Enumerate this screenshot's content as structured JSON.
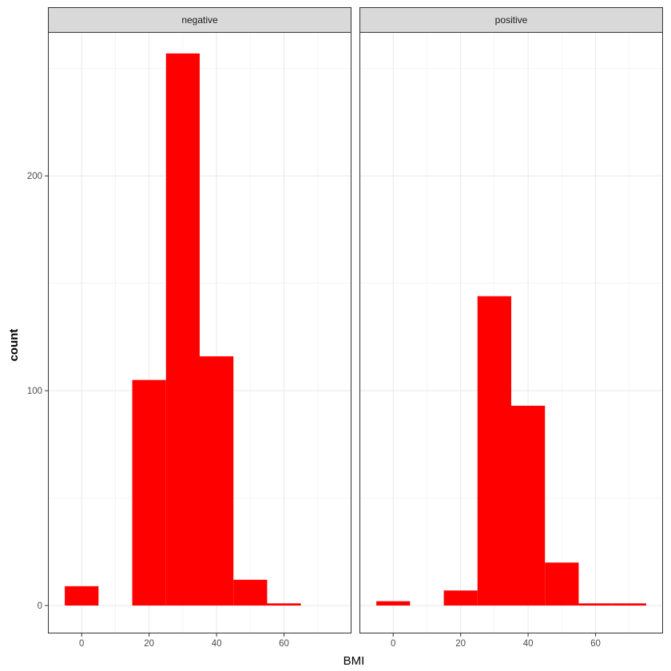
{
  "chart_data": {
    "type": "bar",
    "title": "",
    "xlabel": "BMI",
    "ylabel": "count",
    "x_ticks": [
      0,
      20,
      40,
      60
    ],
    "y_ticks": [
      0,
      100,
      200
    ],
    "xlim": [
      -10,
      80
    ],
    "ylim": [
      -13,
      267
    ],
    "bin_width": 10,
    "grid": true,
    "bar_color": "#ff0000",
    "strip_color": "#d9d9d9",
    "panels": [
      {
        "label": "negative",
        "bins": [
          {
            "x_center": 0,
            "count": 9
          },
          {
            "x_center": 10,
            "count": 0
          },
          {
            "x_center": 20,
            "count": 105
          },
          {
            "x_center": 30,
            "count": 257
          },
          {
            "x_center": 40,
            "count": 116
          },
          {
            "x_center": 50,
            "count": 12
          },
          {
            "x_center": 60,
            "count": 1
          },
          {
            "x_center": 70,
            "count": 0
          }
        ]
      },
      {
        "label": "positive",
        "bins": [
          {
            "x_center": 0,
            "count": 2
          },
          {
            "x_center": 10,
            "count": 0
          },
          {
            "x_center": 20,
            "count": 7
          },
          {
            "x_center": 30,
            "count": 144
          },
          {
            "x_center": 40,
            "count": 93
          },
          {
            "x_center": 50,
            "count": 20
          },
          {
            "x_center": 60,
            "count": 1
          },
          {
            "x_center": 70,
            "count": 1
          }
        ]
      }
    ]
  }
}
